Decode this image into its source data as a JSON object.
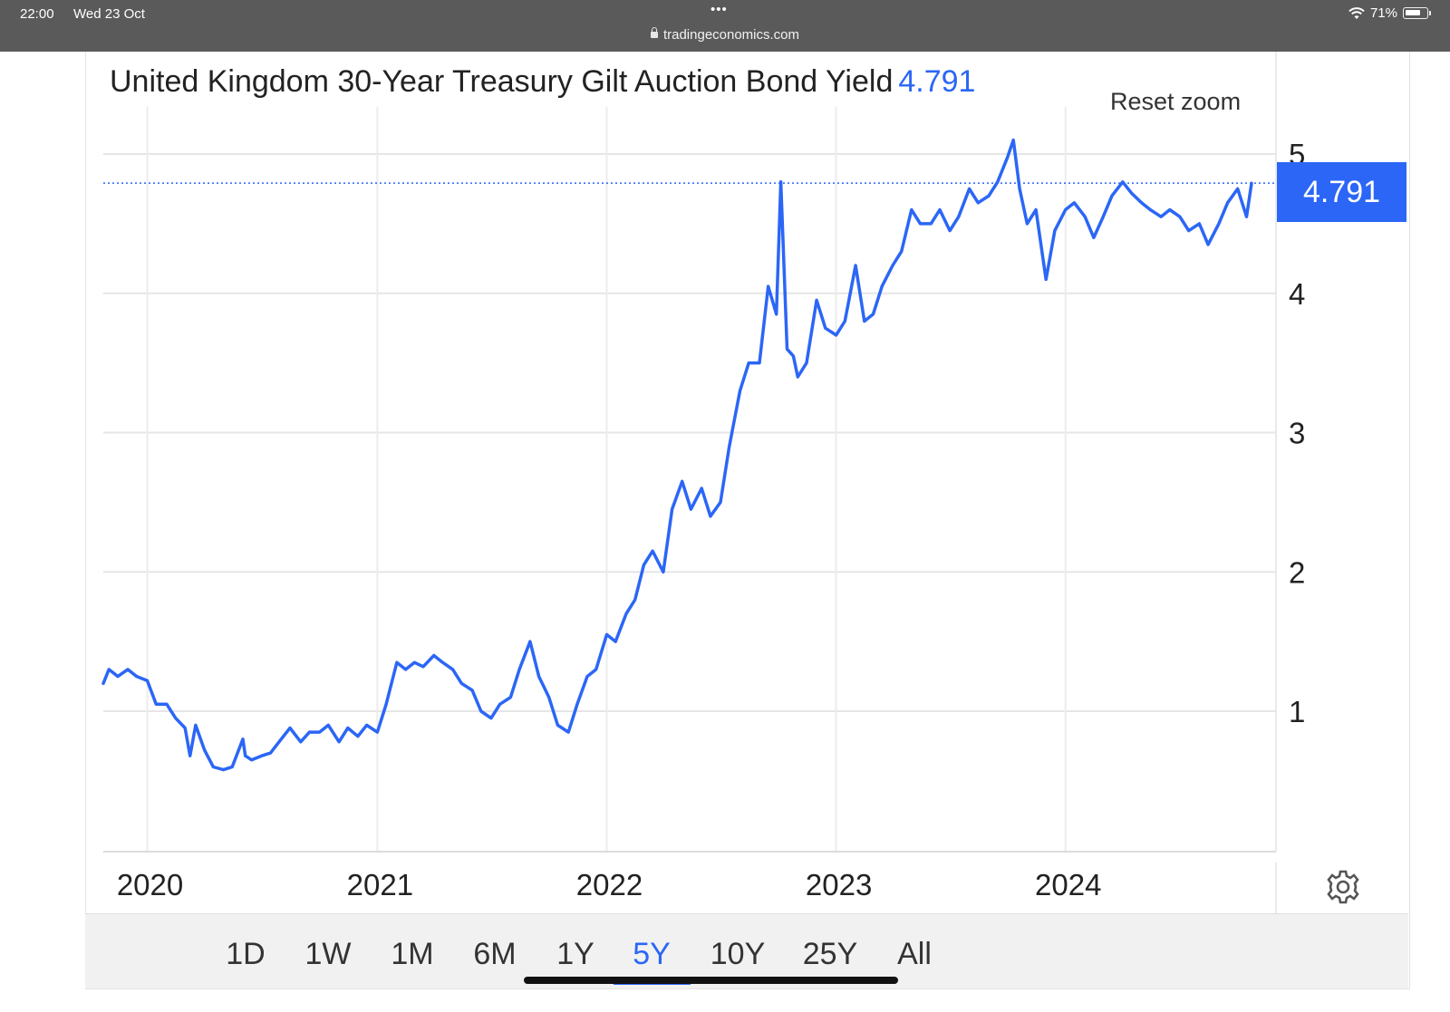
{
  "status_bar": {
    "time": "22:00",
    "date": "Wed 23 Oct",
    "dots": "•••",
    "url": "tradingeconomics.com",
    "battery": "71%",
    "wifi_icon": "wifi-icon",
    "battery_icon": "battery-icon",
    "lock_icon": "lock-icon"
  },
  "header": {
    "title": "United Kingdom 30-Year Treasury Gilt Auction Bond Yield",
    "last_value": "4.791",
    "reset_zoom": "Reset zoom"
  },
  "badge": {
    "value": "4.791"
  },
  "settings_icon": "gear-icon",
  "ranges": [
    {
      "label": "1D",
      "active": false
    },
    {
      "label": "1W",
      "active": false
    },
    {
      "label": "1M",
      "active": false
    },
    {
      "label": "6M",
      "active": false
    },
    {
      "label": "1Y",
      "active": false
    },
    {
      "label": "5Y",
      "active": true
    },
    {
      "label": "10Y",
      "active": false
    },
    {
      "label": "25Y",
      "active": false
    },
    {
      "label": "All",
      "active": false
    }
  ],
  "colors": {
    "series": "#2b66f6",
    "grid": "#e6e6e6",
    "text": "#222222",
    "badge": "#2b66f6"
  },
  "chart_data": {
    "type": "line",
    "title": "United Kingdom 30-Year Treasury Gilt Auction Bond Yield",
    "xlabel": "",
    "ylabel": "",
    "x_ticks": [
      "2020",
      "2021",
      "2022",
      "2023",
      "2024"
    ],
    "y_ticks": [
      1,
      2,
      3,
      4,
      5
    ],
    "ylim": [
      0.0,
      5.2
    ],
    "xlim": [
      "2019-10-23",
      "2024-10-23"
    ],
    "last_value": 4.791,
    "grid": true,
    "legend": "none",
    "series": [
      {
        "x": [
          "2019-10-23",
          "2019-11-01",
          "2019-11-15",
          "2019-12-01",
          "2019-12-15",
          "2020-01-01",
          "2020-01-15",
          "2020-02-01",
          "2020-02-15",
          "2020-03-01",
          "2020-03-09",
          "2020-03-18",
          "2020-04-01",
          "2020-04-15",
          "2020-05-01",
          "2020-05-15",
          "2020-06-01",
          "2020-06-05",
          "2020-06-15",
          "2020-07-01",
          "2020-07-15",
          "2020-08-01",
          "2020-08-15",
          "2020-09-01",
          "2020-09-15",
          "2020-10-01",
          "2020-10-15",
          "2020-11-01",
          "2020-11-15",
          "2020-12-01",
          "2020-12-15",
          "2021-01-01",
          "2021-01-15",
          "2021-02-01",
          "2021-02-15",
          "2021-03-01",
          "2021-03-15",
          "2021-04-01",
          "2021-04-15",
          "2021-05-01",
          "2021-05-15",
          "2021-06-01",
          "2021-06-15",
          "2021-07-01",
          "2021-07-15",
          "2021-08-01",
          "2021-08-15",
          "2021-09-01",
          "2021-09-15",
          "2021-10-01",
          "2021-10-15",
          "2021-11-01",
          "2021-11-15",
          "2021-12-01",
          "2021-12-15",
          "2022-01-01",
          "2022-01-15",
          "2022-02-01",
          "2022-02-15",
          "2022-03-01",
          "2022-03-15",
          "2022-04-01",
          "2022-04-15",
          "2022-05-01",
          "2022-05-15",
          "2022-06-01",
          "2022-06-15",
          "2022-07-01",
          "2022-07-15",
          "2022-08-01",
          "2022-08-15",
          "2022-09-01",
          "2022-09-15",
          "2022-09-28",
          "2022-10-05",
          "2022-10-15",
          "2022-10-25",
          "2022-11-01",
          "2022-11-15",
          "2022-12-01",
          "2022-12-15",
          "2023-01-01",
          "2023-01-15",
          "2023-02-01",
          "2023-02-15",
          "2023-03-01",
          "2023-03-15",
          "2023-04-01",
          "2023-04-15",
          "2023-05-01",
          "2023-05-15",
          "2023-06-01",
          "2023-06-15",
          "2023-07-01",
          "2023-07-15",
          "2023-08-01",
          "2023-08-15",
          "2023-09-01",
          "2023-09-15",
          "2023-10-01",
          "2023-10-10",
          "2023-10-20",
          "2023-11-01",
          "2023-11-15",
          "2023-12-01",
          "2023-12-15",
          "2024-01-01",
          "2024-01-15",
          "2024-02-01",
          "2024-02-15",
          "2024-03-01",
          "2024-03-15",
          "2024-04-01",
          "2024-04-15",
          "2024-05-01",
          "2024-05-15",
          "2024-06-01",
          "2024-06-15",
          "2024-07-01",
          "2024-07-15",
          "2024-08-01",
          "2024-08-15",
          "2024-09-01",
          "2024-09-15",
          "2024-10-01",
          "2024-10-15",
          "2024-10-23"
        ],
        "values": [
          1.2,
          1.3,
          1.25,
          1.3,
          1.25,
          1.22,
          1.05,
          1.05,
          0.95,
          0.88,
          0.68,
          0.9,
          0.72,
          0.6,
          0.58,
          0.6,
          0.8,
          0.68,
          0.65,
          0.68,
          0.7,
          0.8,
          0.88,
          0.78,
          0.85,
          0.85,
          0.9,
          0.78,
          0.88,
          0.82,
          0.9,
          0.85,
          1.05,
          1.35,
          1.3,
          1.35,
          1.32,
          1.4,
          1.35,
          1.3,
          1.2,
          1.15,
          1.0,
          0.95,
          1.05,
          1.1,
          1.3,
          1.5,
          1.25,
          1.1,
          0.9,
          0.85,
          1.05,
          1.25,
          1.3,
          1.55,
          1.5,
          1.7,
          1.8,
          2.05,
          2.15,
          2.0,
          2.45,
          2.65,
          2.45,
          2.6,
          2.4,
          2.5,
          2.9,
          3.3,
          3.5,
          3.5,
          4.05,
          3.85,
          4.8,
          3.6,
          3.55,
          3.4,
          3.5,
          3.95,
          3.75,
          3.7,
          3.8,
          4.2,
          3.8,
          3.85,
          4.05,
          4.2,
          4.3,
          4.6,
          4.5,
          4.5,
          4.6,
          4.45,
          4.55,
          4.75,
          4.65,
          4.7,
          4.8,
          4.98,
          5.1,
          4.75,
          4.5,
          4.6,
          4.1,
          4.45,
          4.6,
          4.65,
          4.55,
          4.4,
          4.55,
          4.7,
          4.8,
          4.72,
          4.65,
          4.6,
          4.55,
          4.6,
          4.55,
          4.45,
          4.5,
          4.35,
          4.5,
          4.65,
          4.75,
          4.55,
          4.79
        ]
      }
    ]
  }
}
